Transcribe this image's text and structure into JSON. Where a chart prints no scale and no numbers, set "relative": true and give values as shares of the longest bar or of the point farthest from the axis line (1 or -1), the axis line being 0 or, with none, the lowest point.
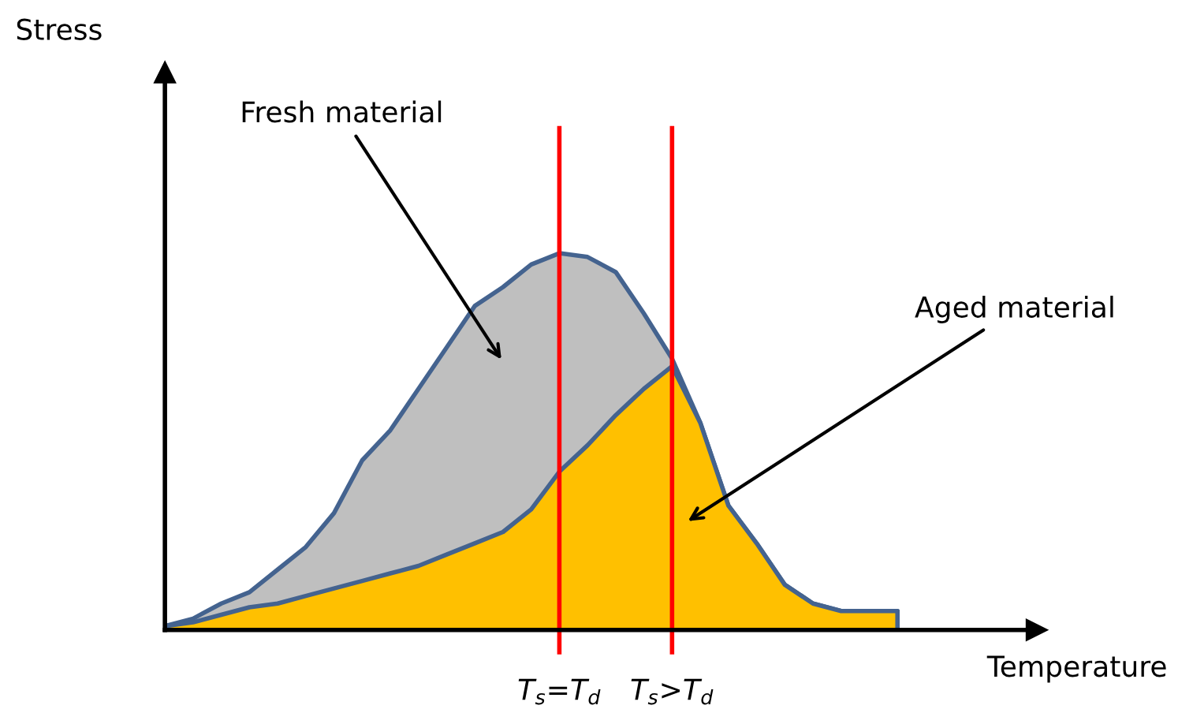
{
  "chart_data": {
    "type": "area",
    "relative": true,
    "xlabel": "Temperature",
    "annotations": [
      "Stress"
    ],
    "tick_labels": "x",
    "categories": [
      null,
      null,
      null,
      null,
      null,
      null,
      null,
      null,
      null,
      null,
      null,
      null,
      null,
      null,
      "T$_{s}$=T$_{d}$",
      null,
      null,
      null,
      "T$_{s}$>T$_{d}$",
      null,
      null,
      null,
      null,
      null,
      null,
      null,
      null
    ],
    "series": [
      {
        "name": "Fresh material",
        "color": "#bfbfbf",
        "values": [
          0.01,
          0.03,
          0.07,
          0.1,
          0.16,
          0.22,
          0.31,
          0.45,
          0.53,
          0.64,
          0.75,
          0.86,
          0.91,
          0.97,
          1,
          0.99,
          0.95,
          0.84,
          0.72,
          0.55,
          0.33,
          0.23,
          0.12,
          0.07,
          0.05,
          0.05,
          0.05
        ]
      },
      {
        "name": "Aged material",
        "color": "#ffc000",
        "values": [
          0.01,
          0.02,
          0.04,
          0.06,
          0.07,
          0.09,
          0.11,
          0.13,
          0.15,
          0.17,
          0.2,
          0.23,
          0.26,
          0.32,
          0.42,
          0.49,
          0.57,
          0.64,
          0.7,
          0.55,
          0.33,
          0.23,
          0.12,
          0.07,
          0.05,
          0.05,
          0.05
        ]
      }
    ],
    "ref_lines": [
      {
        "axis": "x",
        "value": "T$_{s}$=T$_{d}$",
        "color": "#ff0000"
      },
      {
        "axis": "x",
        "value": "T$_{s}$>T$_{d}$",
        "color": "#ff0000"
      }
    ]
  }
}
